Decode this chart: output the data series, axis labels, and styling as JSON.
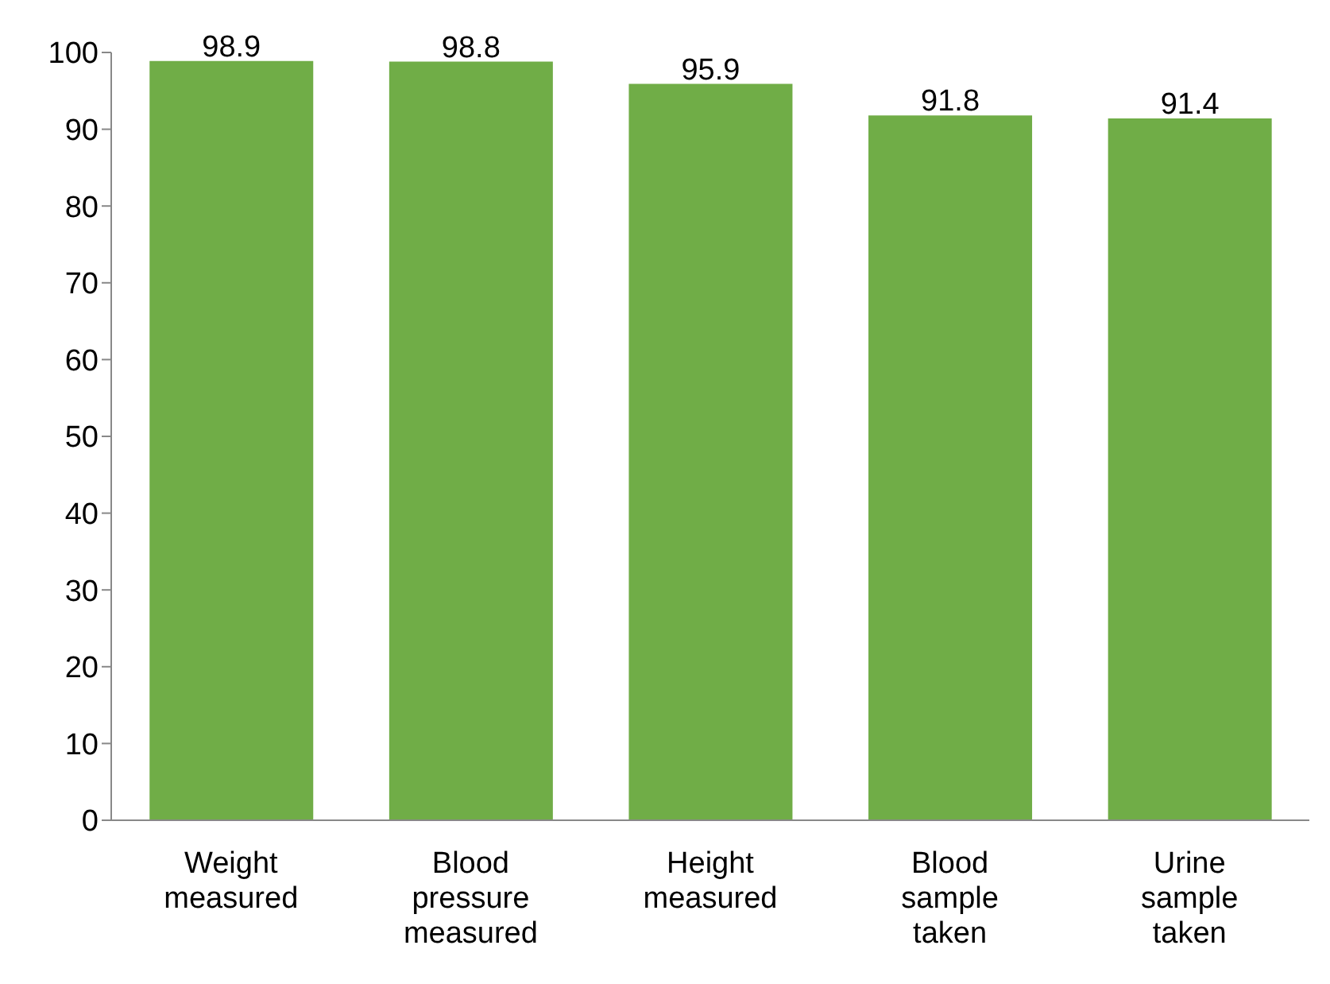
{
  "chart_data": {
    "type": "bar",
    "categories": [
      "Weight measured",
      "Blood pressure measured",
      "Height measured",
      "Blood sample taken",
      "Urine sample taken"
    ],
    "values": [
      98.9,
      98.8,
      95.9,
      91.8,
      91.4
    ],
    "color": "#70ad47",
    "ylim": [
      0,
      100
    ],
    "yticks": [
      0,
      10,
      20,
      30,
      40,
      50,
      60,
      70,
      80,
      90,
      100
    ],
    "grid": false,
    "data_labels": true
  }
}
